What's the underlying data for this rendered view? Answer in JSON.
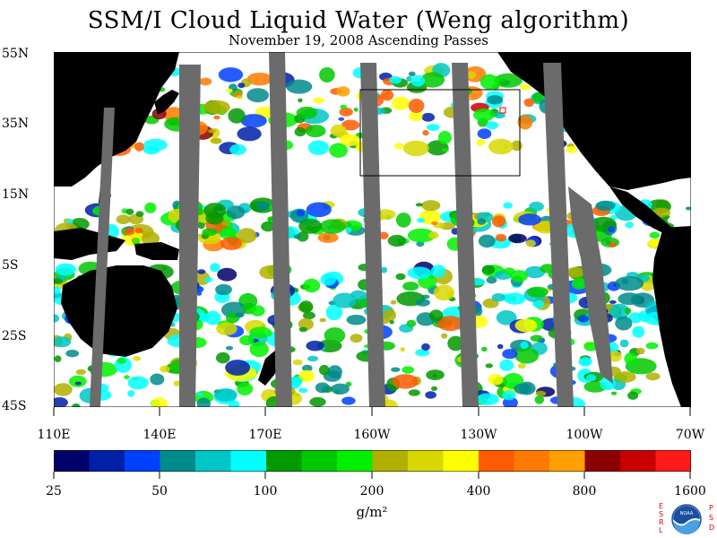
{
  "title": "SSM/I Cloud Liquid Water (Weng algorithm)",
  "subtitle": "November 19, 2008  Ascending Passes",
  "map": {
    "lat_labels": [
      "55N",
      "35N",
      "15N",
      "5S",
      "25S",
      "45S"
    ],
    "lon_labels": [
      "110E",
      "140E",
      "170E",
      "160W",
      "130W",
      "100W",
      "70W"
    ],
    "colors": {
      "ocean_clear": "#ffffff",
      "land": "#000000",
      "no_data_swath_gap": "#6b6b6b"
    }
  },
  "colorbar": {
    "tick_labels": [
      "25",
      "50",
      "100",
      "200",
      "400",
      "800",
      "1600"
    ],
    "unit": "g/m²",
    "colors": [
      "#00006b",
      "#0020a8",
      "#0040ff",
      "#008b8b",
      "#00c6c6",
      "#00ffff",
      "#009900",
      "#00c800",
      "#00f000",
      "#b0b000",
      "#d8d800",
      "#ffff00",
      "#ff5a00",
      "#ff7a00",
      "#ffa000",
      "#8b0000",
      "#c80000",
      "#ff1a1a"
    ]
  },
  "logo": {
    "left_text": "ESRL",
    "right_text": "PSD",
    "center_text": "NOAA"
  }
}
